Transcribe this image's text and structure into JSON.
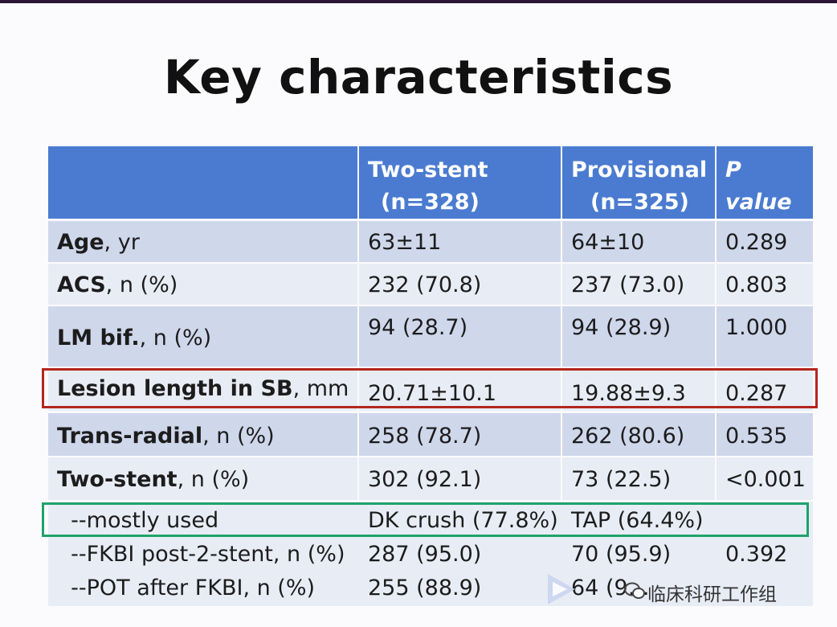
{
  "title": "Key characteristics",
  "table": {
    "header": {
      "c1_line1": "Two-stent",
      "c1_line2": "(n=328)",
      "c2_line1": "Provisional",
      "c2_line2": "(n=325)",
      "c3_line1": "P",
      "c3_line2": "value"
    },
    "rows": [
      {
        "label_bold": "Age",
        "label_rest": ", yr",
        "two_stent": "63±11",
        "provisional": "64±10",
        "p": "0.289"
      },
      {
        "label_bold": "ACS",
        "label_rest": ", n (%)",
        "two_stent": "232 (70.8)",
        "provisional": "237 (73.0)",
        "p": "0.803"
      },
      {
        "label_bold": "LM bif.",
        "label_rest": ", n (%)",
        "two_stent": "94 (28.7)",
        "provisional": "94 (28.9)",
        "p": "1.000"
      },
      {
        "label_bold": "Lesion length in SB",
        "label_rest": ", mm",
        "two_stent": "20.71±10.1",
        "provisional": "19.88±9.3",
        "p": "0.287"
      },
      {
        "label_bold": "Trans-radial",
        "label_rest": ", n (%)",
        "two_stent": "258 (78.7)",
        "provisional": "262 (80.6)",
        "p": "0.535"
      },
      {
        "label_bold": "Two-stent",
        "label_rest": ", n (%)",
        "two_stent": "302 (92.1)",
        "provisional": "73 (22.5)",
        "p": "<0.001"
      },
      {
        "label": "  --mostly used",
        "two_stent": "DK crush (77.8%)",
        "provisional": "TAP (64.4%)",
        "p": ""
      },
      {
        "label": "  --FKBI post-2-stent, n (%)",
        "two_stent": "287 (95.0)",
        "provisional": "70 (95.9)",
        "p": "0.392"
      },
      {
        "label": "  --POT after FKBI, n (%)",
        "two_stent": "255 (88.9)",
        "provisional": "64 (9…",
        "p": ""
      }
    ]
  },
  "watermark": {
    "text": "临床科研工作组"
  },
  "colors": {
    "header_bg": "#4a7bd0",
    "row_dark": "#cfd7eb",
    "row_light": "#e8ecf5",
    "highlight_red": "#b3261e",
    "highlight_green": "#1ea36a"
  }
}
